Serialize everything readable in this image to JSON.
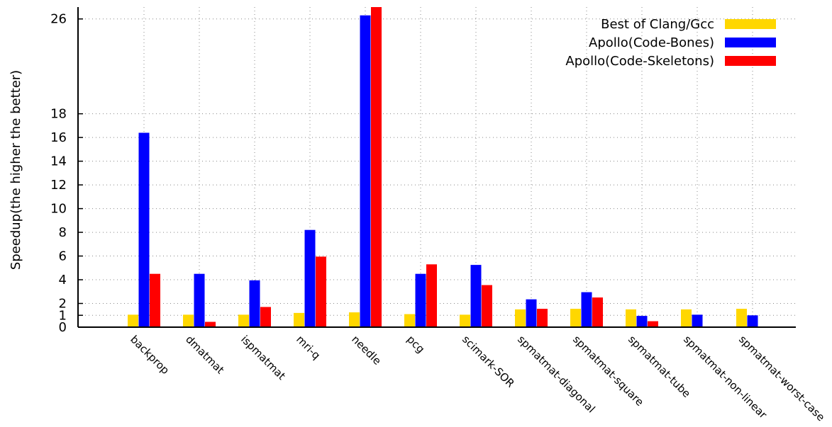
{
  "chart_data": {
    "type": "bar",
    "ylabel": "Speedup(the higher the better)",
    "ylim": [
      0,
      27
    ],
    "yticks": [
      0,
      1,
      2,
      4,
      6,
      8,
      10,
      12,
      14,
      16,
      18,
      26
    ],
    "grid": true,
    "legend_position": "top-right",
    "categories": [
      "backprop",
      "dmatmat",
      "ispmatmat",
      "mri-q",
      "needle",
      "pcg",
      "scimark-SOR",
      "spmatmat-diagonal",
      "spmatmat-square",
      "spmatmat-tube",
      "spmatmat-non-linear",
      "spmatmat-worst-case"
    ],
    "series": [
      {
        "name": "Best of Clang/Gcc",
        "color": "#ffd700",
        "values": [
          1.05,
          1.05,
          1.05,
          1.2,
          1.25,
          1.1,
          1.05,
          1.5,
          1.55,
          1.5,
          1.5,
          1.55
        ]
      },
      {
        "name": "Apollo(Code-Bones)",
        "color": "#0000ff",
        "values": [
          16.4,
          4.5,
          3.95,
          8.2,
          26.3,
          4.5,
          5.25,
          2.35,
          2.95,
          0.95,
          1.05,
          1.0
        ]
      },
      {
        "name": "Apollo(Code-Skeletons)",
        "color": "#ff0000",
        "values": [
          4.5,
          0.45,
          1.7,
          5.95,
          27.0,
          5.3,
          3.55,
          1.55,
          2.5,
          0.5,
          0,
          0
        ]
      }
    ]
  }
}
